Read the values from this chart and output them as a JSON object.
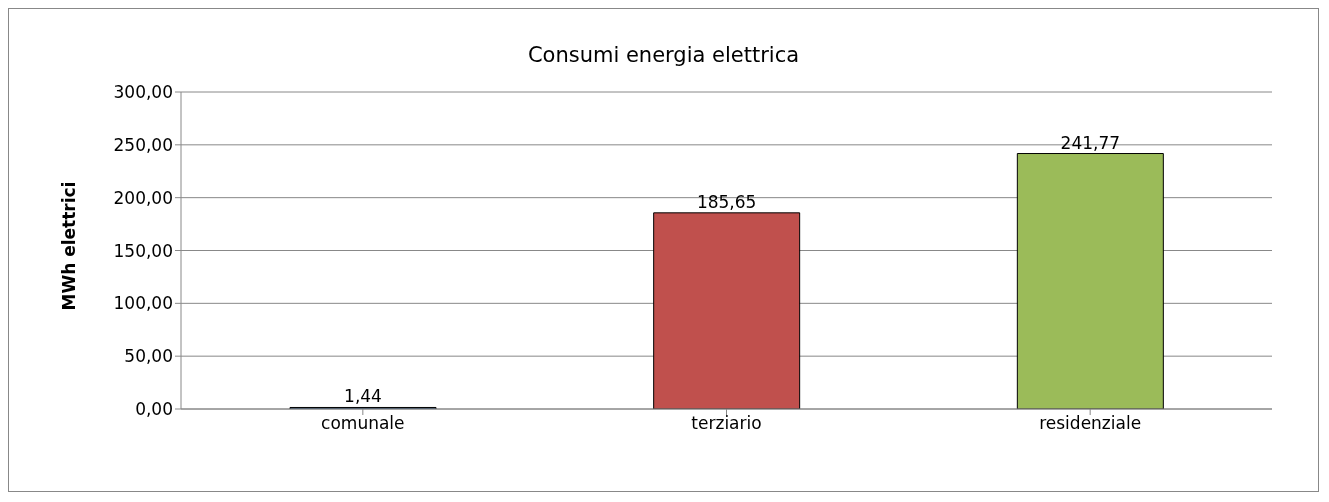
{
  "chart_data": {
    "type": "bar",
    "title": "Consumi energia elettrica",
    "ylabel": "MWh elettrici",
    "categories": [
      "comunale",
      "terziario",
      "residenziale"
    ],
    "values": [
      1.44,
      185.65,
      241.77
    ],
    "colors": [
      "#4f81bd",
      "#c0504d",
      "#9bbb59"
    ],
    "value_labels": [
      "1,44",
      "185,65",
      "241,77"
    ],
    "ylim": [
      0,
      300
    ],
    "yticks": [
      {
        "value": 0,
        "label": "0,00"
      },
      {
        "value": 50,
        "label": "50,00"
      },
      {
        "value": 100,
        "label": "100,00"
      },
      {
        "value": 150,
        "label": "150,00"
      },
      {
        "value": 200,
        "label": "200,00"
      },
      {
        "value": 250,
        "label": "250,00"
      },
      {
        "value": 300,
        "label": "300,00"
      }
    ],
    "grid": "y",
    "legend": false
  }
}
